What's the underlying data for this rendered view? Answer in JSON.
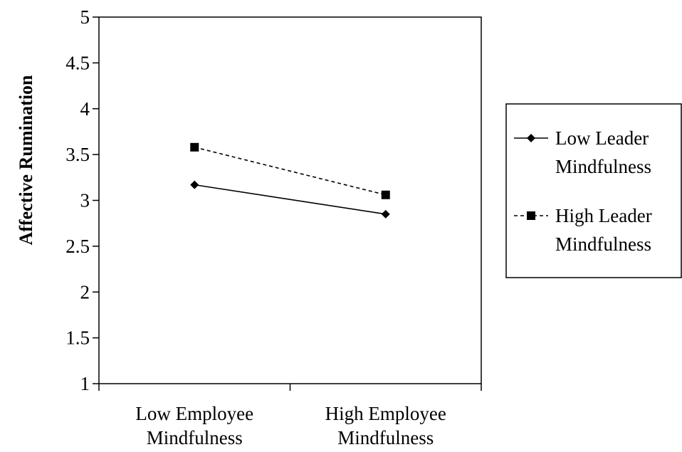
{
  "chart_data": {
    "type": "line",
    "title": "",
    "ylabel": "Affective Rumination",
    "xlabel": "",
    "categories": [
      [
        "Low  Employee",
        "Mindfulness"
      ],
      [
        "High  Employee",
        "Mindfulness"
      ]
    ],
    "ylim": [
      1,
      5
    ],
    "yticks": [
      "1",
      "1.5",
      "2",
      "2.5",
      "3",
      "3.5",
      "4",
      "4.5",
      "5"
    ],
    "grid": false,
    "legend_position": "right",
    "series": [
      {
        "name_lines": [
          "Low  Leader",
          "Mindfulness"
        ],
        "values": [
          3.17,
          2.85
        ],
        "marker": "diamond",
        "line_style": "solid",
        "color": "#000000"
      },
      {
        "name_lines": [
          "High  Leader",
          "Mindfulness"
        ],
        "values": [
          3.58,
          3.06
        ],
        "marker": "square",
        "line_style": "dashed",
        "color": "#000000"
      }
    ]
  }
}
